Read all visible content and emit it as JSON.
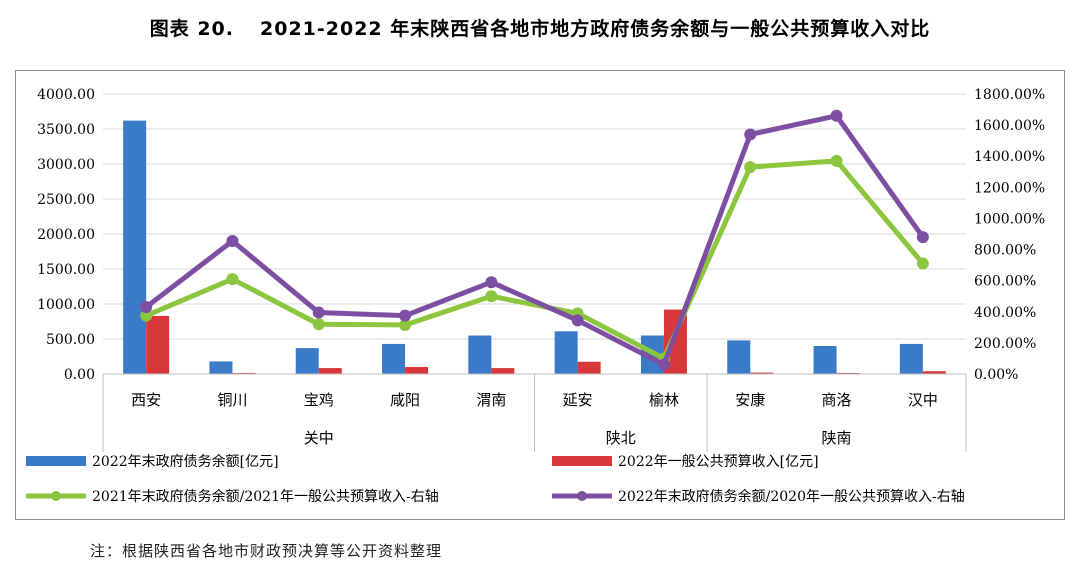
{
  "figure": {
    "label": "图表 20.",
    "title": "2021-2022 年末陕西省各地市地方政府债务余额与一般公共预算收入对比",
    "note": "注：根据陕西省各地市财政预决算等公开资料整理"
  },
  "chart_data": {
    "type": "bar+line",
    "categories": [
      "西安",
      "铜川",
      "宝鸡",
      "咸阳",
      "渭南",
      "延安",
      "榆林",
      "安康",
      "商洛",
      "汉中"
    ],
    "groups": [
      {
        "name": "关中",
        "categories": [
          "西安",
          "铜川",
          "宝鸡",
          "咸阳",
          "渭南"
        ]
      },
      {
        "name": "陕北",
        "categories": [
          "延安",
          "榆林"
        ]
      },
      {
        "name": "陕南",
        "categories": [
          "安康",
          "商洛",
          "汉中"
        ]
      }
    ],
    "y_left": {
      "ticks": [
        "0.00",
        "500.00",
        "1000.00",
        "1500.00",
        "2000.00",
        "2500.00",
        "3000.00",
        "3500.00",
        "4000.00"
      ],
      "ylim": [
        0,
        4000
      ]
    },
    "y_right": {
      "ticks": [
        "0.00%",
        "200.00%",
        "400.00%",
        "600.00%",
        "800.00%",
        "1000.00%",
        "1200.00%",
        "1400.00%",
        "1600.00%",
        "1800.00%"
      ],
      "ylim": [
        0,
        1800
      ]
    },
    "bar_series": [
      {
        "name": "2022年末政府债务余额[亿元]",
        "color": "#3a7bc8",
        "axis": "left",
        "values": [
          3620,
          180,
          370,
          430,
          550,
          610,
          550,
          480,
          400,
          430
        ]
      },
      {
        "name": "2022年一般公共预算收入[亿元]",
        "color": "#d9383a",
        "axis": "left",
        "values": [
          830,
          15,
          85,
          100,
          85,
          175,
          920,
          20,
          15,
          40
        ]
      }
    ],
    "line_series": [
      {
        "name": "2021年末政府债务余额/2021年一般公共预算收入-右轴",
        "color": "#8cc63f",
        "axis": "right",
        "values": [
          375,
          610,
          320,
          315,
          500,
          390,
          100,
          1330,
          1370,
          710
        ]
      },
      {
        "name": "2022年末政府债务余额/2020年一般公共预算收入-右轴",
        "color": "#7d4fa3",
        "axis": "right",
        "values": [
          430,
          855,
          395,
          375,
          590,
          345,
          60,
          1540,
          1660,
          880
        ]
      }
    ]
  }
}
